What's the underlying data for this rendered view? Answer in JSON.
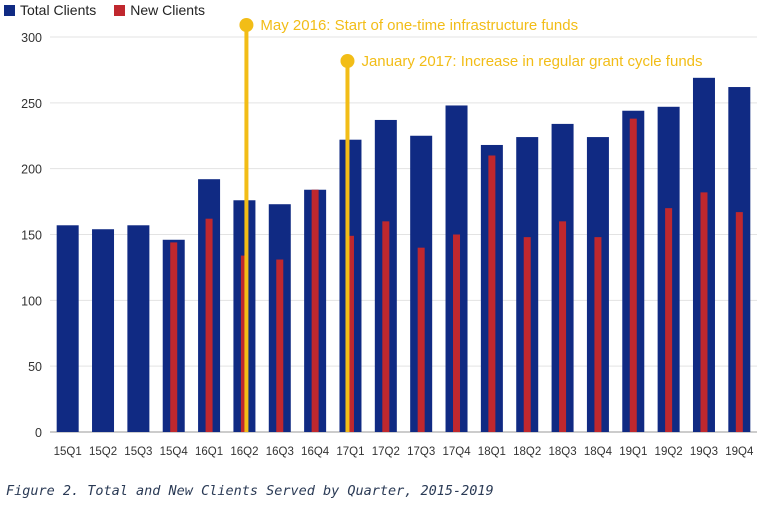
{
  "legend": {
    "total_label": "Total Clients",
    "new_label": "New Clients"
  },
  "caption": "Figure 2. Total and New Clients Served by Quarter, 2015-2019",
  "colors": {
    "total": "#102a83",
    "new": "#c0282e",
    "annotation": "#f2bd17",
    "axis": "#999999"
  },
  "annotations": [
    {
      "label": "May 2016: Start of one-time infrastructure funds",
      "category": "16Q2"
    },
    {
      "label": "January 2017: Increase in regular grant cycle funds",
      "category": "17Q1"
    }
  ],
  "chart_data": {
    "type": "bar",
    "categories": [
      "15Q1",
      "15Q2",
      "15Q3",
      "15Q4",
      "16Q1",
      "16Q2",
      "16Q3",
      "16Q4",
      "17Q1",
      "17Q2",
      "17Q3",
      "17Q4",
      "18Q1",
      "18Q2",
      "18Q3",
      "18Q4",
      "19Q1",
      "19Q2",
      "19Q3",
      "19Q4"
    ],
    "series": [
      {
        "name": "Total Clients",
        "values": [
          157,
          154,
          157,
          146,
          192,
          176,
          173,
          184,
          222,
          237,
          225,
          248,
          218,
          224,
          234,
          224,
          244,
          247,
          269,
          262
        ]
      },
      {
        "name": "New Clients",
        "values": [
          null,
          null,
          null,
          144,
          162,
          134,
          131,
          184,
          149,
          160,
          140,
          150,
          210,
          148,
          160,
          148,
          238,
          170,
          182,
          167
        ]
      }
    ],
    "yticks": [
      0,
      50,
      100,
      150,
      200,
      250,
      300
    ],
    "ylim": [
      0,
      300
    ],
    "grid": true,
    "legend_position": "top-left"
  }
}
